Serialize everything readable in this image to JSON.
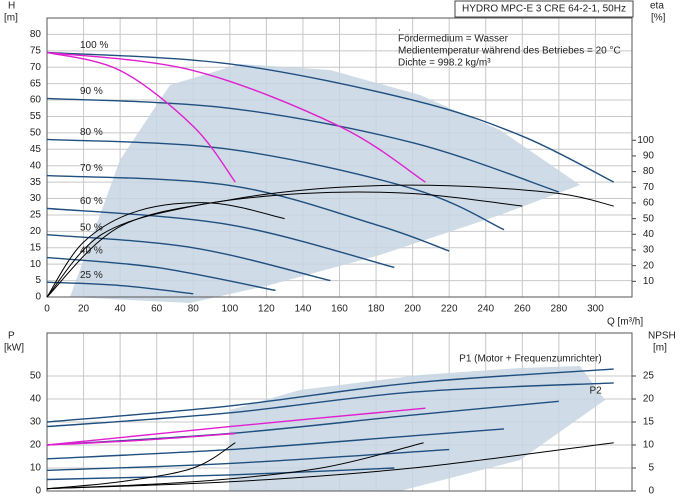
{
  "chart_data": [
    {
      "type": "line",
      "title": "HYDRO MPC-E 3 CRE 64-2-1, 50Hz",
      "notes": [
        ".",
        "Fördermedium = Wasser",
        "Medientemperatur während des Betriebes = 20 °C",
        "Dichte = 998.2 kg/m³"
      ],
      "ylabel": "H",
      "ylabel_unit": "[m]",
      "y2label": "eta",
      "y2label_unit": "[%]",
      "xlabel": "Q [m³/h]",
      "xlim": [
        0,
        320
      ],
      "xticks": [
        0,
        20,
        40,
        60,
        80,
        100,
        120,
        140,
        160,
        180,
        200,
        220,
        240,
        260,
        280,
        300
      ],
      "ylim": [
        0,
        85
      ],
      "yticks": [
        0,
        5,
        10,
        15,
        20,
        25,
        30,
        35,
        40,
        45,
        50,
        55,
        60,
        65,
        70,
        75,
        80
      ],
      "y2lim": [
        0,
        178
      ],
      "y2ticks": [
        10,
        20,
        30,
        40,
        50,
        60,
        70,
        80,
        90,
        100
      ],
      "grid": true,
      "series": [
        {
          "name": "100 %",
          "color": "#1f4f7f",
          "x": [
            0,
            100,
            200,
            260,
            310
          ],
          "values": [
            74.5,
            71,
            60,
            49,
            35
          ]
        },
        {
          "name": "90 %",
          "color": "#1f4f7f",
          "x": [
            0,
            100,
            200,
            280
          ],
          "values": [
            60.5,
            57.5,
            47,
            32
          ]
        },
        {
          "name": "80 %",
          "color": "#1f4f7f",
          "x": [
            0,
            100,
            200,
            250
          ],
          "values": [
            48,
            45,
            33,
            20.5
          ]
        },
        {
          "name": "70 %",
          "color": "#1f4f7f",
          "x": [
            0,
            100,
            180,
            220
          ],
          "values": [
            37,
            34,
            22,
            14
          ]
        },
        {
          "name": "60 %",
          "color": "#1f4f7f",
          "x": [
            0,
            100,
            190
          ],
          "values": [
            27,
            22,
            9
          ]
        },
        {
          "name": "50 %",
          "color": "#1f4f7f",
          "x": [
            0,
            80,
            155
          ],
          "values": [
            19,
            15,
            5
          ]
        },
        {
          "name": "40 %",
          "color": "#1f4f7f",
          "x": [
            0,
            60,
            125
          ],
          "values": [
            12,
            9,
            2
          ]
        },
        {
          "name": "25 %",
          "color": "#1f4f7f",
          "x": [
            0,
            40,
            80
          ],
          "values": [
            4.5,
            3.5,
            1
          ]
        },
        {
          "color": "#e020d0",
          "x": [
            0,
            40,
            80,
            103
          ],
          "values": [
            74.5,
            69,
            52,
            35
          ]
        },
        {
          "color": "#e020d0",
          "x": [
            0,
            80,
            160,
            207
          ],
          "values": [
            74.5,
            69,
            52,
            35
          ]
        },
        {
          "color": "#000000",
          "axis": "y2",
          "x": [
            0,
            40,
            100,
            160,
            220,
            280,
            310
          ],
          "values": [
            0,
            45,
            62,
            70,
            71,
            66,
            58
          ]
        },
        {
          "color": "#000000",
          "axis": "y2",
          "x": [
            0,
            30,
            80,
            140,
            200,
            260
          ],
          "values": [
            0,
            40,
            58,
            66,
            66,
            58
          ]
        },
        {
          "color": "#000000",
          "axis": "y2",
          "x": [
            0,
            20,
            50,
            90,
            130
          ],
          "values": [
            0,
            35,
            55,
            60,
            50
          ]
        }
      ]
    },
    {
      "type": "line",
      "ylabel": "P",
      "ylabel_unit": "[kW]",
      "y2label": "NPSH",
      "y2label_unit": "[m]",
      "xlim": [
        0,
        320
      ],
      "xticks": [
        0,
        20,
        40,
        60,
        80,
        100,
        120,
        140,
        160,
        180,
        200,
        220,
        240,
        260,
        280,
        300
      ],
      "ylim": [
        0,
        68.7
      ],
      "yticks": [
        0,
        10,
        20,
        30,
        40,
        50
      ],
      "y2lim": [
        0,
        34.35
      ],
      "y2ticks": [
        0,
        5,
        10,
        15,
        20,
        25
      ],
      "grid": true,
      "series": [
        {
          "name": "P1 (Motor + Frequenzumrichter)",
          "color": "#1f4f7f",
          "x": [
            0,
            100,
            200,
            310
          ],
          "values": [
            30,
            37,
            47,
            53
          ]
        },
        {
          "name": "P2",
          "color": "#1f4f7f",
          "x": [
            0,
            100,
            200,
            310
          ],
          "values": [
            28,
            34,
            43,
            47
          ]
        },
        {
          "color": "#1f4f7f",
          "x": [
            0,
            100,
            200,
            280
          ],
          "values": [
            20,
            25,
            33,
            39
          ]
        },
        {
          "color": "#1f4f7f",
          "x": [
            0,
            100,
            200,
            250
          ],
          "values": [
            14,
            18,
            24,
            27
          ]
        },
        {
          "color": "#1f4f7f",
          "x": [
            0,
            100,
            220
          ],
          "values": [
            9,
            12,
            18
          ]
        },
        {
          "color": "#1f4f7f",
          "x": [
            0,
            100,
            190
          ],
          "values": [
            5,
            7,
            10
          ]
        },
        {
          "color": "#e020d0",
          "x": [
            0,
            50,
            103
          ],
          "values": [
            20,
            22,
            25
          ]
        },
        {
          "color": "#e020d0",
          "x": [
            0,
            100,
            207
          ],
          "values": [
            20,
            28,
            36
          ]
        },
        {
          "color": "#000000",
          "axis": "y2",
          "x": [
            0,
            100,
            200,
            310
          ],
          "values": [
            0.5,
            2,
            5,
            10.5
          ]
        },
        {
          "color": "#000000",
          "axis": "y2",
          "x": [
            0,
            80,
            150,
            206
          ],
          "values": [
            0.5,
            2,
            5,
            10.5
          ]
        },
        {
          "color": "#000000",
          "axis": "y2",
          "x": [
            0,
            40,
            80,
            103
          ],
          "values": [
            0.5,
            2,
            5,
            10.5
          ]
        }
      ]
    }
  ]
}
